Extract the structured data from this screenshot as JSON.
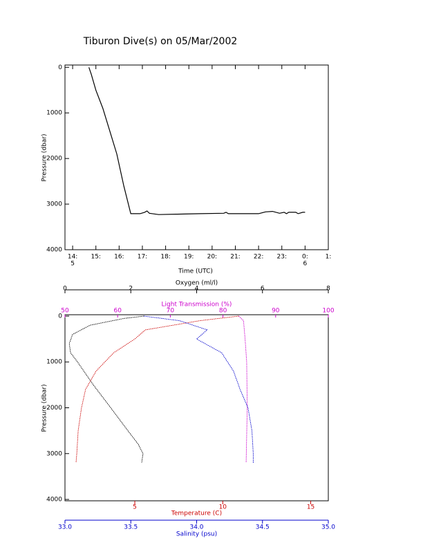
{
  "chart_data": [
    {
      "type": "line",
      "title": "Tiburon Dive(s) on 05/Mar/2002",
      "xlabel": "Time (UTC)",
      "ylabel": "Pressure (dbar)",
      "xlim": [
        13.67,
        25
      ],
      "ylim": [
        4000,
        -50
      ],
      "xticks": [
        {
          "value": 14,
          "label": "14:"
        },
        {
          "value": 15,
          "label": "15:"
        },
        {
          "value": 16,
          "label": "16:"
        },
        {
          "value": 17,
          "label": "17:"
        },
        {
          "value": 18,
          "label": "18:"
        },
        {
          "value": 19,
          "label": "19:"
        },
        {
          "value": 20,
          "label": "20:"
        },
        {
          "value": 21,
          "label": "21:"
        },
        {
          "value": 22,
          "label": "22:"
        },
        {
          "value": 23,
          "label": "23:"
        },
        {
          "value": 24,
          "label": "0:"
        },
        {
          "value": 25,
          "label": "1:"
        }
      ],
      "date_ticks": [
        {
          "value": 14,
          "label": "5"
        },
        {
          "value": 24,
          "label": "6"
        }
      ],
      "yticks": [
        0,
        1000,
        2000,
        3000,
        4000
      ],
      "color": "#000000",
      "x": [
        14.7,
        14.8,
        15.0,
        15.3,
        15.6,
        15.9,
        16.2,
        16.5,
        16.9,
        17.1,
        17.2,
        17.3,
        17.7,
        18.5,
        19.5,
        20.5,
        20.6,
        20.7,
        22.0,
        22.3,
        22.6,
        22.9,
        23.1,
        23.2,
        23.3,
        23.6,
        23.7,
        23.9,
        24.0
      ],
      "values": [
        0,
        150,
        500,
        900,
        1400,
        1900,
        2600,
        3210,
        3210,
        3180,
        3150,
        3200,
        3230,
        3220,
        3210,
        3200,
        3180,
        3210,
        3210,
        3170,
        3160,
        3200,
        3180,
        3210,
        3180,
        3180,
        3210,
        3180,
        3180
      ]
    },
    {
      "type": "profile",
      "ylabel": "Pressure (dbar)",
      "ylim": [
        4030,
        -30
      ],
      "yticks": [
        0,
        1000,
        2000,
        3000,
        4000
      ],
      "axes": [
        {
          "label": "Oxygen (ml/l)",
          "position": "top",
          "color": "#000000",
          "xlim": [
            0,
            8
          ],
          "xticks": [
            0,
            2,
            4,
            6,
            8
          ],
          "x": [
            2.4,
            1.8,
            0.76,
            0.23,
            0.13,
            0.17,
            0.38,
            0.86,
            1.39,
            1.91,
            2.23,
            2.37,
            2.33
          ],
          "y": [
            0,
            50,
            200,
            400,
            600,
            800,
            1000,
            1500,
            2000,
            2500,
            2800,
            3000,
            3200
          ]
        },
        {
          "label": "Light Transmission (%)",
          "position": "top",
          "color": "#cc00cc",
          "xlim": [
            50,
            100
          ],
          "xticks": [
            50,
            60,
            70,
            80,
            90,
            100
          ],
          "x": [
            83,
            83.9,
            84.2,
            84.5,
            84.6,
            84.4
          ],
          "y": [
            0,
            100,
            500,
            1000,
            2000,
            3200
          ]
        },
        {
          "label": "Temperature (C)",
          "position": "bottom",
          "color": "#cc0000",
          "xlim": [
            1.03,
            16
          ],
          "xticks": [
            5,
            10,
            15
          ],
          "x": [
            10.9,
            8.7,
            5.6,
            5.0,
            3.8,
            2.8,
            2.2,
            1.97,
            1.78,
            1.7,
            1.66
          ],
          "y": [
            0,
            100,
            300,
            500,
            800,
            1200,
            1600,
            2000,
            2500,
            3000,
            3200
          ]
        },
        {
          "label": "Salinity (psu)",
          "position": "bottom",
          "color": "#0000cc",
          "xlim": [
            33,
            35
          ],
          "xticks": [
            {
              "value": 33,
              "label": "33.0"
            },
            {
              "value": 33.5,
              "label": "33.5"
            },
            {
              "value": 34,
              "label": "34.0"
            },
            {
              "value": 34.5,
              "label": "34.5"
            },
            {
              "value": 35,
              "label": "35.0"
            }
          ],
          "x": [
            33.6,
            33.87,
            34.08,
            34.0,
            34.19,
            34.28,
            34.33,
            34.39,
            34.42,
            34.43,
            34.43
          ],
          "y": [
            0,
            100,
            300,
            500,
            800,
            1200,
            1600,
            2000,
            2500,
            3000,
            3200
          ]
        }
      ]
    }
  ]
}
